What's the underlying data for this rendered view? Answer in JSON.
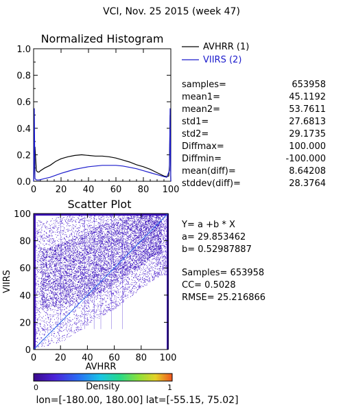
{
  "header": {
    "title": "VCI,  Nov. 25 2015 (week 47)"
  },
  "histogram": {
    "title": "Normalized Histogram",
    "legend": [
      {
        "label": "AVHRR (1)",
        "color": "#000000"
      },
      {
        "label": "VIIRS (2)",
        "color": "#1a1acc"
      }
    ],
    "stats": [
      {
        "label": "samples=",
        "value": "653958"
      },
      {
        "label": "mean1=",
        "value": "45.1192"
      },
      {
        "label": "mean2=",
        "value": "53.7611"
      },
      {
        "label": "std1=",
        "value": "27.6813"
      },
      {
        "label": "std2=",
        "value": "29.1735"
      },
      {
        "label": "Diffmax=",
        "value": "100.000"
      },
      {
        "label": "Diffmin=",
        "value": "-100.000"
      },
      {
        "label": "mean(diff)=",
        "value": "8.64208"
      },
      {
        "label": "stddev(diff)=",
        "value": "28.3764"
      }
    ]
  },
  "scatter": {
    "title": "Scatter Plot",
    "xlabel": "AVHRR",
    "ylabel": "VIIRS",
    "regression_lines": [
      "Y= a +b * X",
      "a= 29.853462",
      "b= 0.52987887"
    ],
    "fit_lines": [
      "Samples= 653958",
      "CC=  0.5028",
      "RMSE= 25.216866"
    ]
  },
  "colorbar": {
    "label": "Density",
    "min": "0",
    "max": "1"
  },
  "footer": {
    "text": "lon=[-180.00, 180.00] lat=[-55.15, 75.02]"
  },
  "chart_data": [
    {
      "type": "line",
      "title": "Normalized Histogram",
      "xlim": [
        0,
        100
      ],
      "ylim": [
        0,
        1
      ],
      "xticks": [
        0,
        20,
        40,
        60,
        80,
        100
      ],
      "yticks": [
        "0.0",
        "0.2",
        "0.4",
        "0.6",
        "0.8",
        "1.0"
      ],
      "series": [
        {
          "name": "AVHRR (1)",
          "color": "#000000",
          "x": [
            0,
            0.5,
            1,
            2,
            3,
            4,
            5,
            8,
            12,
            16,
            20,
            25,
            30,
            35,
            40,
            45,
            50,
            55,
            60,
            65,
            70,
            75,
            80,
            85,
            90,
            95,
            97,
            98.5,
            99,
            99.5,
            100
          ],
          "y": [
            0.0,
            0.12,
            0.26,
            0.08,
            0.07,
            0.07,
            0.08,
            0.1,
            0.12,
            0.15,
            0.17,
            0.185,
            0.195,
            0.2,
            0.195,
            0.19,
            0.19,
            0.185,
            0.175,
            0.16,
            0.145,
            0.125,
            0.11,
            0.09,
            0.065,
            0.04,
            0.035,
            0.04,
            0.12,
            0.5,
            0.0
          ]
        },
        {
          "name": "VIIRS (2)",
          "color": "#1a1acc",
          "x": [
            0,
            0.5,
            1,
            2,
            4,
            8,
            12,
            16,
            20,
            25,
            30,
            35,
            40,
            45,
            50,
            55,
            60,
            65,
            70,
            75,
            80,
            85,
            90,
            95,
            97,
            99,
            99.5,
            100
          ],
          "y": [
            0.0,
            0.55,
            0.02,
            0.01,
            0.01,
            0.02,
            0.03,
            0.045,
            0.06,
            0.075,
            0.09,
            0.1,
            0.11,
            0.115,
            0.12,
            0.12,
            0.12,
            0.115,
            0.105,
            0.095,
            0.08,
            0.065,
            0.05,
            0.035,
            0.03,
            0.08,
            0.55,
            0.0
          ]
        }
      ]
    },
    {
      "type": "scatter",
      "title": "Scatter Plot",
      "xlabel": "AVHRR",
      "ylabel": "VIIRS",
      "xlim": [
        0,
        100
      ],
      "ylim": [
        0,
        100
      ],
      "xticks": [
        0,
        20,
        40,
        60,
        80,
        100
      ],
      "yticks": [
        0,
        20,
        40,
        60,
        80,
        100
      ],
      "fit_line": {
        "x": [
          0,
          100
        ],
        "y": [
          0,
          100
        ]
      },
      "density_clouds": [
        {
          "x": [
            10,
            30,
            50,
            70,
            90
          ],
          "y_low": [
            30,
            35,
            42,
            55,
            70
          ],
          "y_high": [
            75,
            82,
            92,
            98,
            100
          ],
          "density": 0.25
        },
        {
          "x": [
            5,
            20,
            40,
            60,
            80,
            95
          ],
          "y_low": [
            2,
            5,
            18,
            30,
            45,
            55
          ],
          "y_high": [
            95,
            98,
            100,
            100,
            100,
            100
          ],
          "density": 0.12
        }
      ]
    }
  ]
}
